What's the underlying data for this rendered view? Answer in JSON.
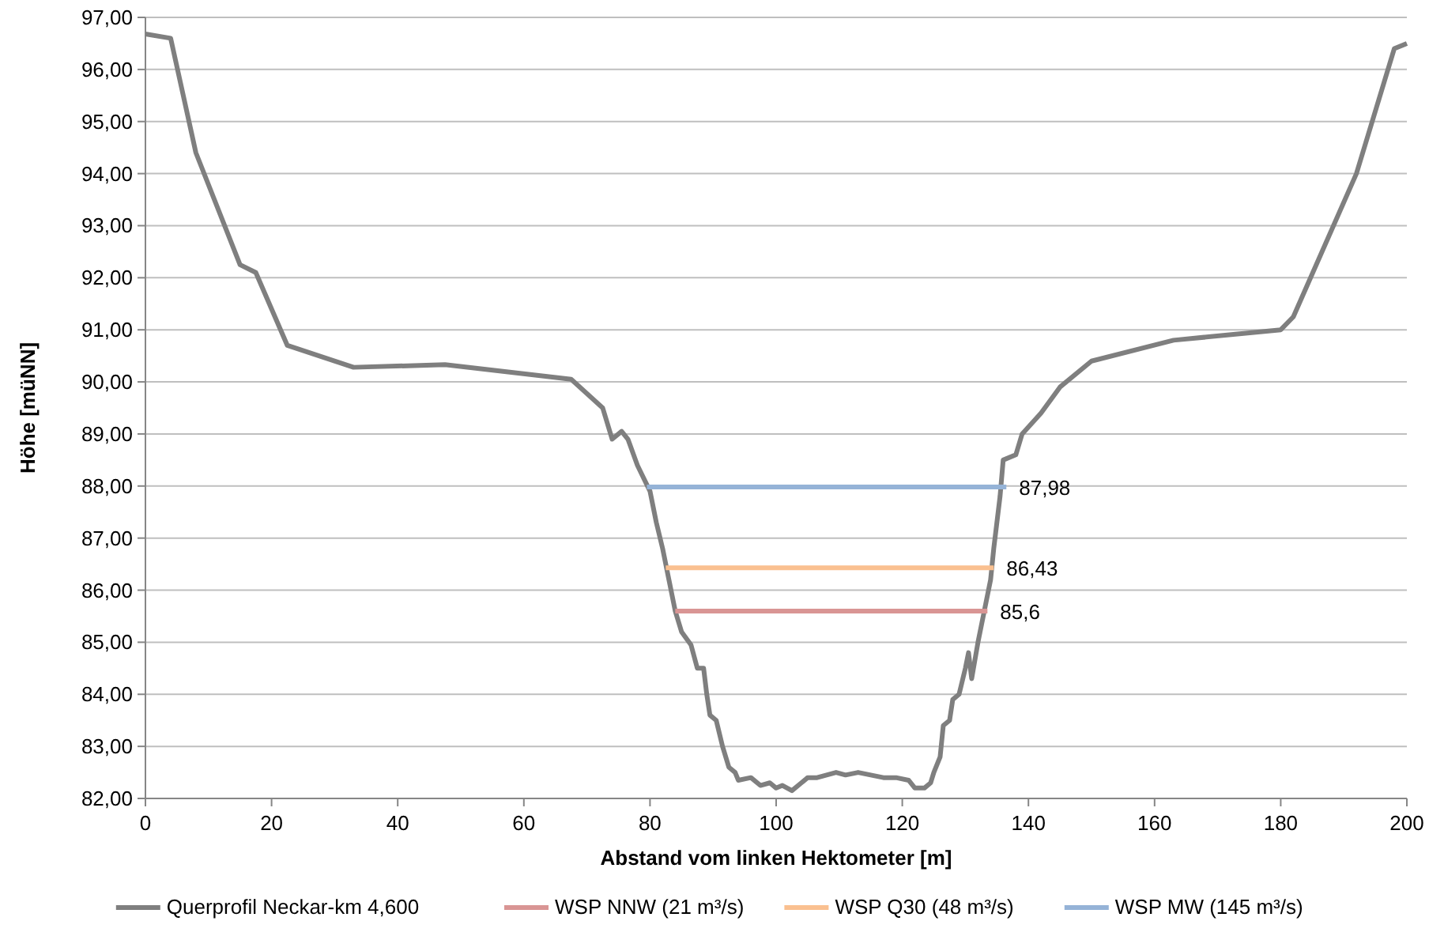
{
  "chart_data": {
    "type": "line",
    "xlabel": "Abstand vom linken Hektometer [m]",
    "ylabel": "Höhe [müNN]",
    "xlim": [
      0,
      200
    ],
    "ylim": [
      82,
      97
    ],
    "xticks": [
      0,
      20,
      40,
      60,
      80,
      100,
      120,
      140,
      160,
      180,
      200
    ],
    "yticks": [
      {
        "value": 82,
        "label": "82,00"
      },
      {
        "value": 83,
        "label": "83,00"
      },
      {
        "value": 84,
        "label": "84,00"
      },
      {
        "value": 85,
        "label": "85,00"
      },
      {
        "value": 86,
        "label": "86,00"
      },
      {
        "value": 87,
        "label": "87,00"
      },
      {
        "value": 88,
        "label": "88,00"
      },
      {
        "value": 89,
        "label": "89,00"
      },
      {
        "value": 90,
        "label": "90,00"
      },
      {
        "value": 91,
        "label": "91,00"
      },
      {
        "value": 92,
        "label": "92,00"
      },
      {
        "value": 93,
        "label": "93,00"
      },
      {
        "value": 94,
        "label": "94,00"
      },
      {
        "value": 95,
        "label": "95,00"
      },
      {
        "value": 96,
        "label": "96,00"
      },
      {
        "value": 97,
        "label": "97,00"
      }
    ],
    "grid": "y",
    "legend": "bottom",
    "line_style": "solid",
    "marker": "none",
    "series": [
      {
        "name": "Querprofil Neckar-km 4,600",
        "color": "#7f7f7f",
        "x": [
          0,
          4,
          8,
          15,
          17.5,
          22.5,
          33,
          47.5,
          67.5,
          72.5,
          74,
          75.5,
          76.5,
          78,
          80,
          81,
          82,
          83,
          84,
          85,
          86.5,
          87.5,
          88.5,
          89,
          89.5,
          90.5,
          91.5,
          92.5,
          93.5,
          94,
          96,
          97.5,
          99,
          100,
          101,
          102.5,
          104,
          105,
          106.5,
          108,
          109.5,
          111,
          113,
          115,
          117,
          119,
          121,
          122,
          123.5,
          124.5,
          125,
          126,
          126.5,
          127.5,
          128,
          129,
          130,
          130.5,
          131,
          132,
          133,
          134,
          134.5,
          135.5,
          136,
          138,
          139,
          142,
          145,
          150,
          163,
          180,
          182,
          184,
          192,
          198,
          200
        ],
        "values": [
          96.68,
          96.6,
          94.4,
          92.25,
          92.1,
          90.7,
          90.28,
          90.33,
          90.05,
          89.5,
          88.9,
          89.05,
          88.9,
          88.4,
          87.9,
          87.3,
          86.8,
          86.2,
          85.6,
          85.2,
          84.95,
          84.5,
          84.5,
          84.0,
          83.6,
          83.5,
          83.0,
          82.6,
          82.5,
          82.35,
          82.4,
          82.25,
          82.3,
          82.2,
          82.25,
          82.15,
          82.3,
          82.4,
          82.4,
          82.45,
          82.5,
          82.45,
          82.5,
          82.45,
          82.4,
          82.4,
          82.35,
          82.2,
          82.2,
          82.3,
          82.5,
          82.8,
          83.4,
          83.5,
          83.9,
          84.0,
          84.5,
          84.8,
          84.3,
          85.0,
          85.6,
          86.2,
          86.8,
          87.8,
          88.5,
          88.6,
          89.0,
          89.4,
          89.9,
          90.4,
          90.8,
          91.0,
          91.25,
          91.8,
          94.0,
          96.4,
          96.5
        ]
      },
      {
        "name": "WSP NNW (21 m³/s)",
        "color": "#d99594",
        "x": [
          84,
          133.5
        ],
        "values": [
          85.6,
          85.6
        ],
        "value_labels": [
          null,
          "85,6"
        ]
      },
      {
        "name": "WSP Q30 (48 m³/s)",
        "color": "#fac090",
        "x": [
          82.5,
          134.5
        ],
        "values": [
          86.43,
          86.43
        ],
        "value_labels": [
          null,
          "86,43"
        ]
      },
      {
        "name": "WSP MW (145 m³/s)",
        "color": "#95b3d7",
        "x": [
          79.5,
          136.5
        ],
        "values": [
          87.98,
          87.98
        ],
        "value_labels": [
          null,
          "87,98"
        ]
      }
    ]
  }
}
